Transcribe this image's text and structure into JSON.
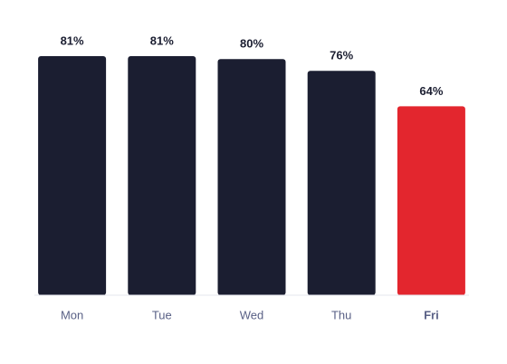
{
  "chart_data": {
    "type": "bar",
    "categories": [
      "Mon",
      "Tue",
      "Wed",
      "Thu",
      "Fri"
    ],
    "values": [
      81,
      81,
      80,
      76,
      64
    ],
    "value_labels": [
      "81%",
      "81%",
      "80%",
      "76%",
      "64%"
    ],
    "colors": [
      "#1b1e31",
      "#1b1e31",
      "#1b1e31",
      "#1b1e31",
      "#e3262e"
    ]
  }
}
